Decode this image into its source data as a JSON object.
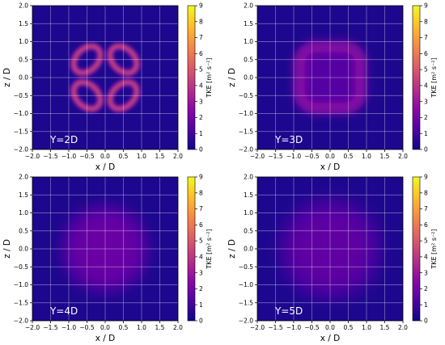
{
  "figure": {
    "colorscale": [
      "#0d0887",
      "#5302a3",
      "#8b0aa5",
      "#b83289",
      "#db5c68",
      "#f48849",
      "#febd2a",
      "#f0f921"
    ]
  },
  "chart_data": [
    {
      "type": "heatmap",
      "annotation": "Y=2D",
      "xlabel": "x / D",
      "ylabel": "z / D",
      "xlim": [
        -2.0,
        2.0
      ],
      "ylim": [
        -2.0,
        2.0
      ],
      "xticks": [
        "−2.0",
        "−1.5",
        "−1.0",
        "−0.5",
        "0.0",
        "0.5",
        "1.0",
        "1.5",
        "2.0"
      ],
      "yticks": [
        "−2.0",
        "−1.5",
        "−1.0",
        "−0.5",
        "0.0",
        "0.5",
        "1.0",
        "1.5",
        "2.0"
      ],
      "grid": true,
      "colorbar": {
        "label": "TKE [m² s⁻²]",
        "range": [
          0,
          9
        ],
        "ticks": [
          "0",
          "1",
          "2",
          "3",
          "4",
          "5",
          "6",
          "7",
          "8",
          "9"
        ]
      },
      "features": "four lobed rings centred near (±0.5, ±0.5), peak TKE ≈ 4.5",
      "background_tke": 0.3,
      "peak_tke": 4.5
    },
    {
      "type": "heatmap",
      "annotation": "Y=3D",
      "xlabel": "x / D",
      "ylabel": "z / D",
      "xlim": [
        -2.0,
        2.0
      ],
      "ylim": [
        -2.0,
        2.0
      ],
      "xticks": [
        "−2.0",
        "−1.5",
        "−1.0",
        "−0.5",
        "0.0",
        "0.5",
        "1.0",
        "1.5",
        "2.0"
      ],
      "yticks": [
        "−2.0",
        "−1.5",
        "−1.0",
        "−0.5",
        "0.0",
        "0.5",
        "1.0",
        "1.5",
        "2.0"
      ],
      "grid": true,
      "colorbar": {
        "label": "TKE [m² s⁻²]",
        "range": [
          0,
          9
        ],
        "ticks": [
          "0",
          "1",
          "2",
          "3",
          "4",
          "5",
          "6",
          "7",
          "8",
          "9"
        ]
      },
      "features": "diffuse square ring of radius ≈ 0.8, peak TKE ≈ 2.5",
      "background_tke": 0.3,
      "peak_tke": 2.5
    },
    {
      "type": "heatmap",
      "annotation": "Y=4D",
      "xlabel": "x / D",
      "ylabel": "z / D",
      "xlim": [
        -2.0,
        2.0
      ],
      "ylim": [
        -2.0,
        2.0
      ],
      "xticks": [
        "−2.0",
        "−1.5",
        "−1.0",
        "−0.5",
        "0.0",
        "0.5",
        "1.0",
        "1.5",
        "2.0"
      ],
      "yticks": [
        "−2.0",
        "−1.5",
        "−1.0",
        "−0.5",
        "0.0",
        "0.5",
        "1.0",
        "1.5",
        "2.0"
      ],
      "grid": true,
      "colorbar": {
        "label": "TKE [m² s⁻²]",
        "range": [
          0,
          9
        ],
        "ticks": [
          "0",
          "1",
          "2",
          "3",
          "4",
          "5",
          "6",
          "7",
          "8",
          "9"
        ]
      },
      "features": "broad diffuse blob of radius ≈ 1.1, peak TKE ≈ 1.8",
      "background_tke": 0.3,
      "peak_tke": 1.8
    },
    {
      "type": "heatmap",
      "annotation": "Y=5D",
      "xlabel": "x / D",
      "ylabel": "z / D",
      "xlim": [
        -2.0,
        2.0
      ],
      "ylim": [
        -2.0,
        2.0
      ],
      "xticks": [
        "−2.0",
        "−1.5",
        "−1.0",
        "−0.5",
        "0.0",
        "0.5",
        "1.0",
        "1.5",
        "2.0"
      ],
      "yticks": [
        "−2.0",
        "−1.5",
        "−1.0",
        "−0.5",
        "0.0",
        "0.5",
        "1.0",
        "1.5",
        "2.0"
      ],
      "grid": true,
      "colorbar": {
        "label": "TKE [m² s⁻²]",
        "range": [
          0,
          9
        ],
        "ticks": [
          "0",
          "1",
          "2",
          "3",
          "4",
          "5",
          "6",
          "7",
          "8",
          "9"
        ]
      },
      "features": "very broad diffuse blob of radius ≈ 1.3, peak TKE ≈ 1.6",
      "background_tke": 0.3,
      "peak_tke": 1.6
    }
  ]
}
